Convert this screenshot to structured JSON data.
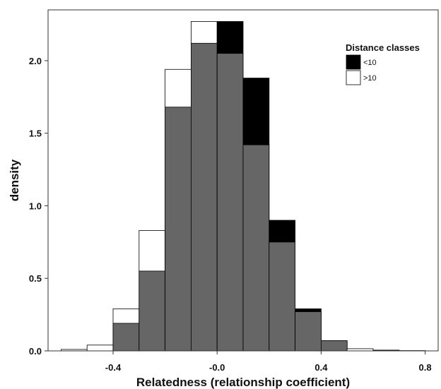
{
  "chart_data": {
    "type": "bar",
    "subtype": "overlaid-histogram",
    "xlabel": "Relatedness (relationship coefficient)",
    "ylabel": "density",
    "xlim": [
      -0.65,
      0.85
    ],
    "ylim": [
      0,
      2.35
    ],
    "x_ticks": [
      -0.4,
      0.0,
      0.4,
      0.8
    ],
    "x_tick_labels": [
      "-0.4",
      "-0.0",
      "0.4",
      "0.8"
    ],
    "y_ticks": [
      0.0,
      0.5,
      1.0,
      1.5,
      2.0
    ],
    "y_tick_labels": [
      "0.0",
      "0.5",
      "1.0",
      "1.5",
      "2.0"
    ],
    "bin_width": 0.1,
    "bins": [
      -0.6,
      -0.5,
      -0.4,
      -0.3,
      -0.2,
      -0.1,
      0.0,
      0.1,
      0.2,
      0.3,
      0.4,
      0.5,
      0.6,
      0.7
    ],
    "series": [
      {
        "name": "<10",
        "color": "#000000",
        "values": [
          0.0,
          0.0,
          0.19,
          0.55,
          1.68,
          2.12,
          2.27,
          1.88,
          0.9,
          0.29,
          0.07,
          0.0,
          0.005,
          0.0
        ]
      },
      {
        "name": ">10",
        "color": "#ffffff",
        "values": [
          0.01,
          0.04,
          0.29,
          0.83,
          1.94,
          2.27,
          2.05,
          1.42,
          0.75,
          0.27,
          0.07,
          0.015,
          0.005,
          0.002
        ]
      }
    ],
    "overlap_color": "#666666",
    "legend": {
      "title": "Distance classes",
      "placement": "top-right",
      "entries": [
        {
          "label": "<10",
          "color": "#000000"
        },
        {
          "label": ">10",
          "color": "#ffffff"
        }
      ]
    },
    "grid": false
  }
}
